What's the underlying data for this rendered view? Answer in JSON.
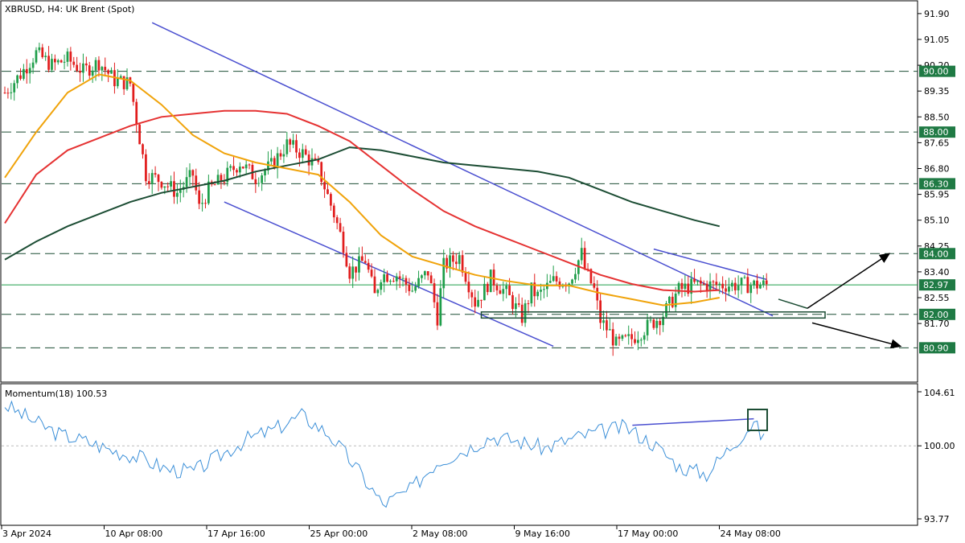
{
  "chart_data": {
    "type": "candlestick",
    "title": "XBRUSD, H4:  UK Brent (Spot)",
    "colors": {
      "bull": "#1f9e4a",
      "bear": "#e11d1d",
      "ma_fast": "#f0a30a",
      "ma_mid": "#e53232",
      "ma_slow": "#1c4d34",
      "channel": "#4a4fd0",
      "level": "#1c4d34",
      "badge": "#1f7a44",
      "momentum": "#3b8fd8"
    },
    "price_axis": {
      "min": 80.3,
      "max": 91.95,
      "ticks": [
        "91.90",
        "91.05",
        "90.20",
        "89.35",
        "88.50",
        "87.65",
        "86.80",
        "85.95",
        "85.10",
        "84.25",
        "83.40",
        "82.55",
        "81.70"
      ]
    },
    "levels": [
      {
        "label": "90.00",
        "value": 90.0
      },
      {
        "label": "88.00",
        "value": 88.0
      },
      {
        "label": "86.30",
        "value": 86.3
      },
      {
        "label": "84.00",
        "value": 84.0
      },
      {
        "label": "82.00",
        "value": 82.0
      },
      {
        "label": "80.90",
        "value": 80.9
      }
    ],
    "current_price": {
      "label": "82.97",
      "value": 82.97
    },
    "x_labels": [
      "3 Apr 2024",
      "10 Apr 08:00",
      "17 Apr 16:00",
      "25 Apr 00:00",
      "2 May 08:00",
      "9 May 16:00",
      "17 May 00:00",
      "24 May 08:00"
    ],
    "series": [
      {
        "name": "close",
        "x": [
          0,
          5,
          10,
          15,
          20,
          25,
          30,
          35,
          40,
          45,
          50,
          55,
          60,
          62,
          65,
          70,
          75,
          80,
          85,
          90,
          95,
          100,
          105,
          108,
          110,
          115,
          118,
          120,
          125,
          130,
          135,
          138,
          140,
          145,
          150,
          153,
          155,
          160,
          165,
          168,
          170,
          175,
          180,
          184,
          185,
          188,
          190,
          193,
          195,
          200,
          205,
          210,
          215,
          220,
          225,
          228,
          230,
          235,
          240,
          245,
          250,
          255
        ],
        "values": [
          89.3,
          89.9,
          90.6,
          90.2,
          90.4,
          90.0,
          90.3,
          89.7,
          89.6,
          86.6,
          86.4,
          86.0,
          86.6,
          85.5,
          86.1,
          86.5,
          87.0,
          86.5,
          86.9,
          87.6,
          87.3,
          86.8,
          85.3,
          84.3,
          83.4,
          83.8,
          82.6,
          83.3,
          83.3,
          82.8,
          83.4,
          81.9,
          83.6,
          83.9,
          82.4,
          82.8,
          83.2,
          82.7,
          81.9,
          82.8,
          82.6,
          83.1,
          83.1,
          84.0,
          83.5,
          82.8,
          81.8,
          81.4,
          81.0,
          81.2,
          81.6,
          82.0,
          82.8,
          82.97,
          82.97,
          82.97,
          82.97,
          82.97,
          82.97,
          82.97,
          82.97,
          82.97
        ]
      },
      {
        "name": "MA fast",
        "x": [
          0,
          10,
          20,
          30,
          40,
          50,
          60,
          70,
          80,
          90,
          100,
          110,
          120,
          130,
          140,
          150,
          160,
          170,
          180,
          190,
          200,
          210,
          220,
          228
        ],
        "values": [
          86.5,
          88.0,
          89.3,
          89.9,
          89.7,
          88.9,
          87.9,
          87.3,
          87.0,
          86.8,
          86.6,
          85.7,
          84.6,
          83.9,
          83.6,
          83.3,
          83.1,
          82.95,
          82.95,
          82.7,
          82.5,
          82.3,
          82.4,
          82.55
        ]
      },
      {
        "name": "MA mid",
        "x": [
          0,
          10,
          20,
          30,
          40,
          50,
          60,
          70,
          80,
          90,
          100,
          110,
          120,
          130,
          140,
          150,
          160,
          170,
          180,
          190,
          200,
          210,
          220,
          228
        ],
        "values": [
          85.0,
          86.6,
          87.4,
          87.8,
          88.2,
          88.5,
          88.6,
          88.7,
          88.7,
          88.6,
          88.2,
          87.7,
          86.9,
          86.1,
          85.4,
          84.9,
          84.5,
          84.1,
          83.7,
          83.3,
          83.0,
          82.8,
          82.75,
          82.8
        ]
      },
      {
        "name": "MA slow",
        "x": [
          0,
          10,
          20,
          30,
          40,
          50,
          60,
          70,
          80,
          90,
          100,
          110,
          120,
          130,
          140,
          150,
          160,
          170,
          180,
          190,
          200,
          210,
          220,
          228
        ],
        "values": [
          83.8,
          84.4,
          84.9,
          85.3,
          85.7,
          86.0,
          86.2,
          86.4,
          86.7,
          86.9,
          87.1,
          87.5,
          87.4,
          87.2,
          87.0,
          86.9,
          86.8,
          86.7,
          86.5,
          86.1,
          85.7,
          85.4,
          85.1,
          84.9
        ]
      }
    ],
    "momentum": {
      "label": "Momentum(18) 100.53",
      "min": 93.77,
      "max": 104.61,
      "ticks": [
        "104.61",
        "100.00",
        "93.77"
      ],
      "x": [
        0,
        8,
        16,
        24,
        32,
        40,
        48,
        56,
        64,
        72,
        80,
        88,
        96,
        104,
        112,
        120,
        128,
        136,
        144,
        152,
        160,
        168,
        176,
        184,
        192,
        200,
        208,
        216,
        222,
        225
      ],
      "values": [
        103.5,
        102.2,
        101.0,
        100.4,
        99.6,
        99.0,
        98.0,
        97.8,
        99.2,
        100.6,
        101.4,
        102.6,
        101.0,
        98.2,
        95.0,
        96.2,
        98.6,
        99.6,
        100.8,
        100.4,
        99.8,
        100.6,
        101.2,
        101.6,
        100.2,
        98.2,
        97.6,
        100.2,
        102.0,
        100.5
      ]
    }
  }
}
